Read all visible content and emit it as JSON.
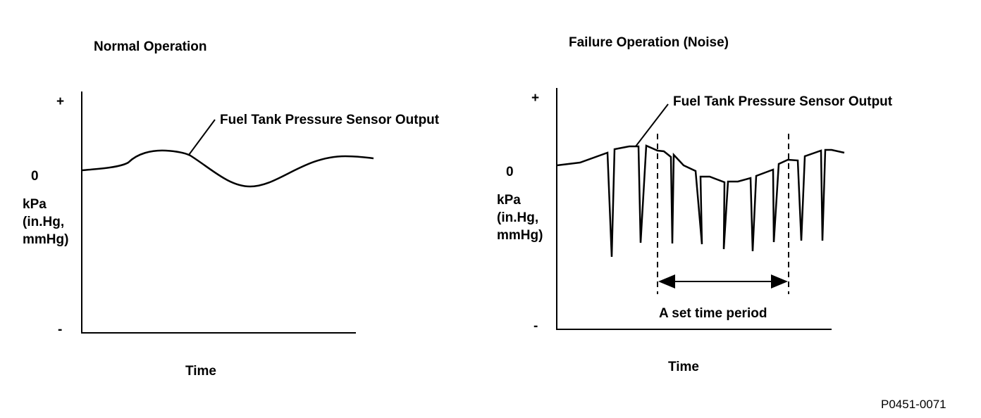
{
  "left": {
    "title": "Normal Operation",
    "plus": "+",
    "zero": "0",
    "minus": "-",
    "unit_lines": [
      "kPa",
      "(in.Hg,",
      "mmHg)"
    ],
    "xlabel": "Time",
    "callout": "Fuel Tank Pressure Sensor Output"
  },
  "right": {
    "title": "Failure Operation (Noise)",
    "plus": "+",
    "zero": "0",
    "minus": "-",
    "unit_lines": [
      "kPa",
      "(in.Hg,",
      "mmHg)"
    ],
    "xlabel": "Time",
    "callout": "Fuel Tank Pressure Sensor Output",
    "period_label": "A set time period"
  },
  "figure_id": "P0451-0071"
}
